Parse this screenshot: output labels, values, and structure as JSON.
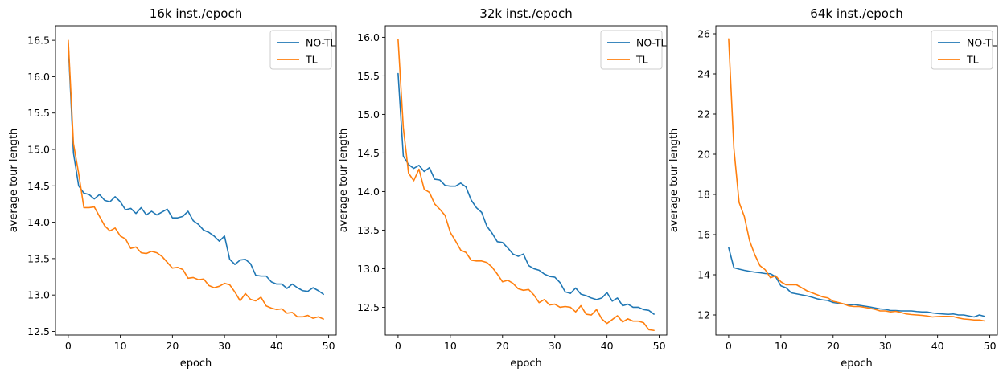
{
  "chart_data": [
    {
      "type": "line",
      "title": "16k inst./epoch",
      "xlabel": "epoch",
      "ylabel": "average tour length",
      "xlim": [
        -2.45,
        51.45
      ],
      "ylim": [
        12.45,
        16.7
      ],
      "xticks": [
        0,
        10,
        20,
        30,
        40,
        50
      ],
      "yticks": [
        12.5,
        13.0,
        13.5,
        14.0,
        14.5,
        15.0,
        15.5,
        16.0,
        16.5
      ],
      "ytick_labels": [
        "12.5",
        "13.0",
        "13.5",
        "14.0",
        "14.5",
        "15.0",
        "15.5",
        "16.0",
        "16.5"
      ],
      "legend": "top-right",
      "series": [
        {
          "name": "NO-TL",
          "color": "#1f77b4",
          "values": [
            16.45,
            14.95,
            14.5,
            14.4,
            14.38,
            14.32,
            14.38,
            14.3,
            14.28,
            14.35,
            14.28,
            14.17,
            14.19,
            14.12,
            14.2,
            14.1,
            14.15,
            14.1,
            14.14,
            14.18,
            14.06,
            14.06,
            14.08,
            14.15,
            14.02,
            13.97,
            13.89,
            13.86,
            13.81,
            13.74,
            13.81,
            13.49,
            13.42,
            13.48,
            13.49,
            13.43,
            13.27,
            13.26,
            13.26,
            13.18,
            13.15,
            13.15,
            13.09,
            13.15,
            13.1,
            13.06,
            13.05,
            13.1,
            13.06,
            13.01
          ]
        },
        {
          "name": "TL",
          "color": "#ff7f0e",
          "values": [
            16.5,
            15.08,
            14.67,
            14.2,
            14.2,
            14.21,
            14.08,
            13.95,
            13.88,
            13.92,
            13.81,
            13.77,
            13.64,
            13.66,
            13.58,
            13.57,
            13.6,
            13.58,
            13.53,
            13.45,
            13.37,
            13.38,
            13.35,
            13.23,
            13.24,
            13.21,
            13.22,
            13.13,
            13.1,
            13.12,
            13.16,
            13.14,
            13.04,
            12.92,
            13.02,
            12.94,
            12.92,
            12.97,
            12.85,
            12.82,
            12.8,
            12.81,
            12.75,
            12.76,
            12.7,
            12.7,
            12.72,
            12.68,
            12.7,
            12.67
          ]
        }
      ]
    },
    {
      "type": "line",
      "title": "32k inst./epoch",
      "xlabel": "epoch",
      "ylabel": "average tour length",
      "xlim": [
        -2.45,
        51.45
      ],
      "ylim": [
        12.14,
        16.15
      ],
      "xticks": [
        0,
        10,
        20,
        30,
        40,
        50
      ],
      "yticks": [
        12.5,
        13.0,
        13.5,
        14.0,
        14.5,
        15.0,
        15.5,
        16.0
      ],
      "ytick_labels": [
        "12.5",
        "13.0",
        "13.5",
        "14.0",
        "14.5",
        "15.0",
        "15.5",
        "16.0"
      ],
      "legend": "top-right",
      "series": [
        {
          "name": "NO-TL",
          "color": "#1f77b4",
          "values": [
            15.53,
            14.46,
            14.35,
            14.3,
            14.34,
            14.26,
            14.31,
            14.16,
            14.15,
            14.08,
            14.07,
            14.07,
            14.11,
            14.06,
            13.89,
            13.79,
            13.73,
            13.55,
            13.46,
            13.35,
            13.34,
            13.27,
            13.19,
            13.16,
            13.19,
            13.04,
            13.0,
            12.98,
            12.93,
            12.9,
            12.89,
            12.82,
            12.7,
            12.68,
            12.75,
            12.67,
            12.65,
            12.62,
            12.6,
            12.62,
            12.69,
            12.58,
            12.62,
            12.52,
            12.54,
            12.5,
            12.5,
            12.47,
            12.46,
            12.41
          ]
        },
        {
          "name": "TL",
          "color": "#ff7f0e",
          "values": [
            15.97,
            14.83,
            14.24,
            14.14,
            14.29,
            14.03,
            13.99,
            13.84,
            13.77,
            13.69,
            13.47,
            13.36,
            13.24,
            13.21,
            13.11,
            13.1,
            13.1,
            13.08,
            13.02,
            12.93,
            12.83,
            12.85,
            12.81,
            12.74,
            12.72,
            12.73,
            12.66,
            12.56,
            12.6,
            12.53,
            12.54,
            12.5,
            12.51,
            12.5,
            12.44,
            12.52,
            12.41,
            12.4,
            12.47,
            12.35,
            12.29,
            12.34,
            12.39,
            12.31,
            12.35,
            12.32,
            12.32,
            12.3,
            12.21,
            12.2
          ]
        }
      ]
    },
    {
      "type": "line",
      "title": "64k inst./epoch",
      "xlabel": "epoch",
      "ylabel": "average tour length",
      "xlim": [
        -2.45,
        51.45
      ],
      "ylim": [
        11.0,
        26.4
      ],
      "xticks": [
        0,
        10,
        20,
        30,
        40,
        50
      ],
      "yticks": [
        12,
        14,
        16,
        18,
        20,
        22,
        24,
        26
      ],
      "ytick_labels": [
        "12",
        "14",
        "16",
        "18",
        "20",
        "22",
        "24",
        "26"
      ],
      "legend": "top-right",
      "series": [
        {
          "name": "NO-TL",
          "color": "#1f77b4",
          "values": [
            15.35,
            14.35,
            14.28,
            14.22,
            14.17,
            14.13,
            14.1,
            14.06,
            14.05,
            13.9,
            13.45,
            13.35,
            13.1,
            13.05,
            13.0,
            12.95,
            12.88,
            12.8,
            12.75,
            12.72,
            12.62,
            12.58,
            12.55,
            12.48,
            12.52,
            12.48,
            12.44,
            12.4,
            12.35,
            12.3,
            12.28,
            12.22,
            12.22,
            12.2,
            12.2,
            12.2,
            12.17,
            12.15,
            12.15,
            12.1,
            12.07,
            12.05,
            12.03,
            12.05,
            12.0,
            12.0,
            11.95,
            11.9,
            12.0,
            11.93
          ]
        },
        {
          "name": "TL",
          "color": "#ff7f0e",
          "values": [
            25.75,
            20.3,
            17.6,
            16.9,
            15.7,
            15.0,
            14.45,
            14.25,
            13.85,
            13.95,
            13.65,
            13.5,
            13.5,
            13.5,
            13.35,
            13.2,
            13.1,
            13.0,
            12.9,
            12.85,
            12.68,
            12.62,
            12.55,
            12.45,
            12.42,
            12.42,
            12.38,
            12.33,
            12.28,
            12.2,
            12.2,
            12.15,
            12.18,
            12.12,
            12.05,
            12.02,
            12.0,
            11.98,
            11.95,
            11.9,
            11.92,
            11.93,
            11.93,
            11.92,
            11.85,
            11.8,
            11.78,
            11.75,
            11.75,
            11.7
          ]
        }
      ]
    }
  ]
}
